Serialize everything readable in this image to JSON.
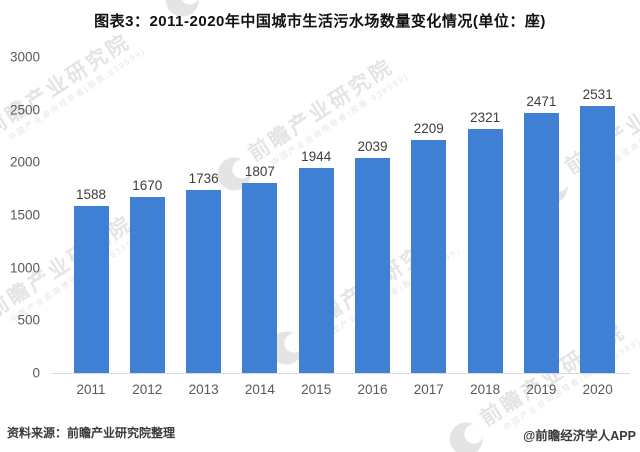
{
  "chart_data": {
    "type": "bar",
    "title": "图表3：2011-2020年中国城市生活污水场数量变化情况(单位：座)",
    "categories": [
      "2011",
      "2012",
      "2013",
      "2014",
      "2015",
      "2016",
      "2017",
      "2018",
      "2019",
      "2020"
    ],
    "values": [
      1588,
      1670,
      1736,
      1807,
      1944,
      2039,
      2209,
      2321,
      2471,
      2531
    ],
    "xlabel": "",
    "ylabel": "",
    "ylim": [
      0,
      3000
    ],
    "yticks": [
      0,
      500,
      1000,
      1500,
      2000,
      2500,
      3000
    ],
    "grid": false,
    "legend": "none",
    "data_labels": true
  },
  "footer": {
    "source": "资料来源：前瞻产业研究院整理",
    "credit": "@前瞻经济学人APP"
  },
  "watermark": {
    "logo": "qianzhan-logo",
    "text": "前瞻产业研究院",
    "subtext": "中国产业咨询领导者(股票:839599)"
  },
  "colors": {
    "bar": "#3F7FD4",
    "title": "#111111",
    "axis_label": "#595959",
    "value_label": "#3D3D3D",
    "baseline": "#D9D9D9",
    "footer_text": "#3A3A3A",
    "watermark": "#BCBCBC"
  }
}
